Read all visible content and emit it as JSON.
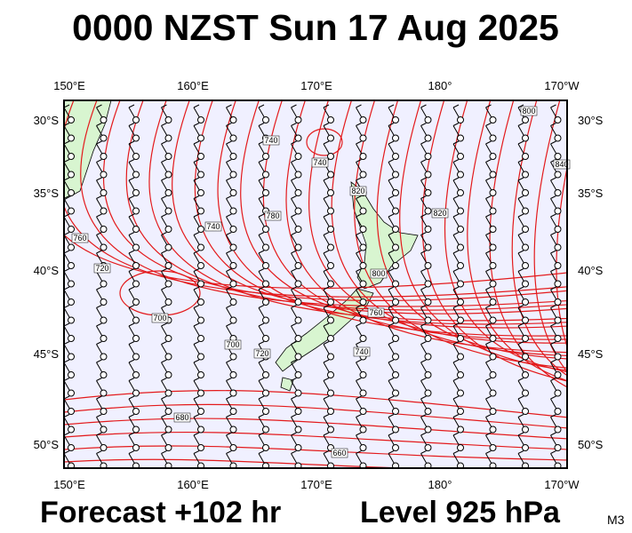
{
  "header": {
    "title": "0000 NZST Sun 17 Aug 2025"
  },
  "map": {
    "lon_labels": [
      "150°E",
      "160°E",
      "170°E",
      "180°",
      "170°W"
    ],
    "lat_labels": [
      "30°S",
      "35°S",
      "40°S",
      "45°S",
      "50°S"
    ],
    "contour_labels": [
      "740",
      "740",
      "780",
      "740",
      "760",
      "720",
      "700",
      "700",
      "720",
      "820",
      "800",
      "760",
      "740",
      "680",
      "660",
      "820",
      "840",
      "800"
    ]
  },
  "footer": {
    "forecast": "Forecast +102 hr",
    "level": "Level 925 hPa",
    "model": "M3"
  }
}
